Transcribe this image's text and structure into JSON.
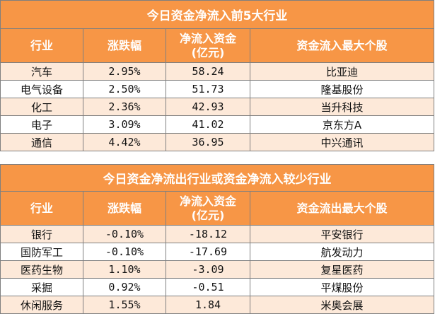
{
  "inflow": {
    "title": "今日资金净流入前5大行业",
    "headers": [
      "行业",
      "涨跌幅",
      "净流入资金(亿元)",
      "资金流入最大个股"
    ],
    "header_lines": {
      "col3_a": "净流入资金",
      "col3_b": "(亿元)"
    },
    "rows": [
      {
        "industry": "汽车",
        "change": "2.95%",
        "net": "58.24",
        "stock": "比亚迪"
      },
      {
        "industry": "电气设备",
        "change": "2.50%",
        "net": "51.73",
        "stock": "隆基股份"
      },
      {
        "industry": "化工",
        "change": "2.36%",
        "net": "42.93",
        "stock": "当升科技"
      },
      {
        "industry": "电子",
        "change": "3.09%",
        "net": "41.02",
        "stock": "京东方A"
      },
      {
        "industry": "通信",
        "change": "4.42%",
        "net": "36.95",
        "stock": "中兴通讯"
      }
    ]
  },
  "outflow": {
    "title": "今日资金净流出行业或资金净流入较少行业",
    "headers": [
      "行业",
      "涨跌幅",
      "净流入资金(亿元)",
      "资金流出最大个股"
    ],
    "header_lines": {
      "col3_a": "净流入资金",
      "col3_b": "(亿元)"
    },
    "rows": [
      {
        "industry": "银行",
        "change": "-0.10%",
        "net": "-18.12",
        "stock": "平安银行"
      },
      {
        "industry": "国防军工",
        "change": "-0.10%",
        "net": "-17.69",
        "stock": "航发动力"
      },
      {
        "industry": "医药生物",
        "change": "1.10%",
        "net": "-3.09",
        "stock": "复星医药"
      },
      {
        "industry": "采掘",
        "change": "0.92%",
        "net": "-0.51",
        "stock": "平煤股份"
      },
      {
        "industry": "休闲服务",
        "change": "1.55%",
        "net": "1.84",
        "stock": "米奥会展"
      }
    ]
  },
  "colors": {
    "header_bg": "#f79646",
    "band": "#fde9d9",
    "border": "#7f7f7f"
  }
}
